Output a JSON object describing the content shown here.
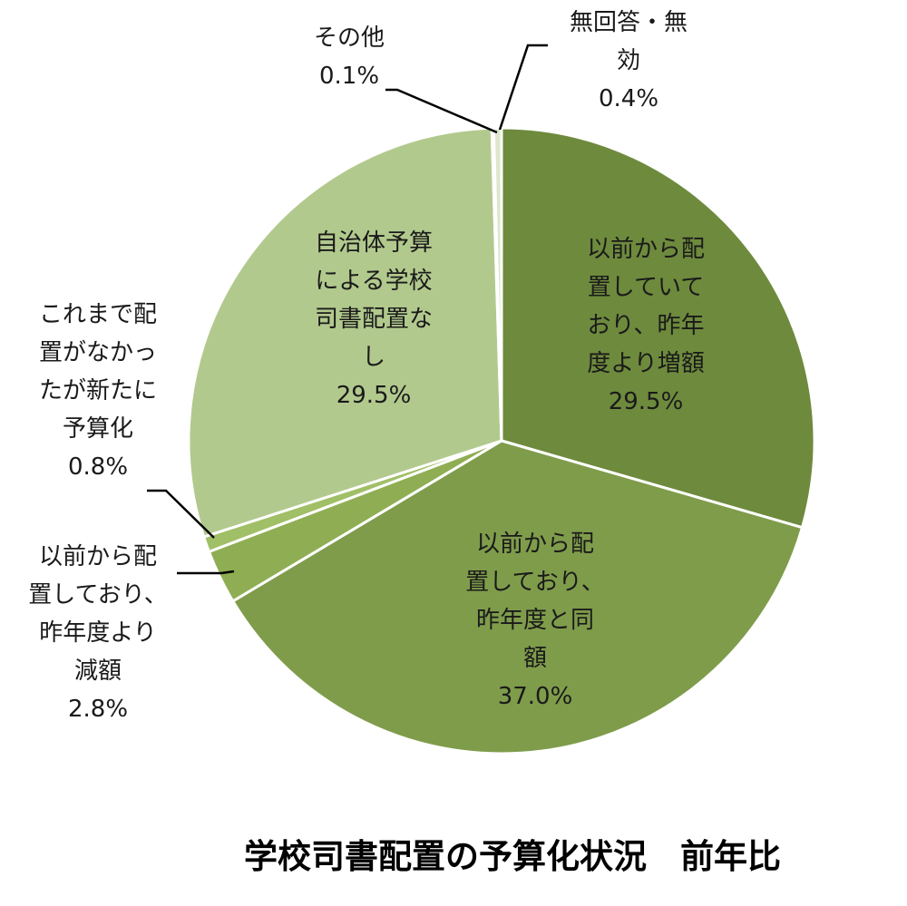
{
  "chart_data": {
    "type": "pie",
    "title": "学校司書配置の予算化状況　前年比",
    "slices": [
      {
        "label": [
          "以前から配",
          "置していて",
          "おり、昨年",
          "度より増額"
        ],
        "value_label": "29.5%",
        "value": 29.5,
        "color": "#6e8a3d"
      },
      {
        "label": [
          "以前から配",
          "置しており、",
          "昨年度と同",
          "額"
        ],
        "value_label": "37.0%",
        "value": 37.0,
        "color": "#7f9c4b"
      },
      {
        "label": [
          "以前から配",
          "置しており、",
          "昨年度より",
          "減額"
        ],
        "value_label": "2.8%",
        "value": 2.8,
        "color": "#8fae53"
      },
      {
        "label": [
          "これまで配",
          "置がなかっ",
          "たが新たに",
          "予算化"
        ],
        "value_label": "0.8%",
        "value": 0.8,
        "color": "#a0bf66"
      },
      {
        "label": [
          "自治体予算",
          "による学校",
          "司書配置な",
          "し"
        ],
        "value_label": "29.5%",
        "value": 29.5,
        "color": "#b2c98d"
      },
      {
        "label": [
          "その他"
        ],
        "value_label": "0.1%",
        "value": 0.1,
        "color": "#c9d9ae"
      },
      {
        "label": [
          "無回答・無",
          "効"
        ],
        "value_label": "0.4%",
        "value": 0.4,
        "color": "#dde7cc"
      }
    ]
  }
}
